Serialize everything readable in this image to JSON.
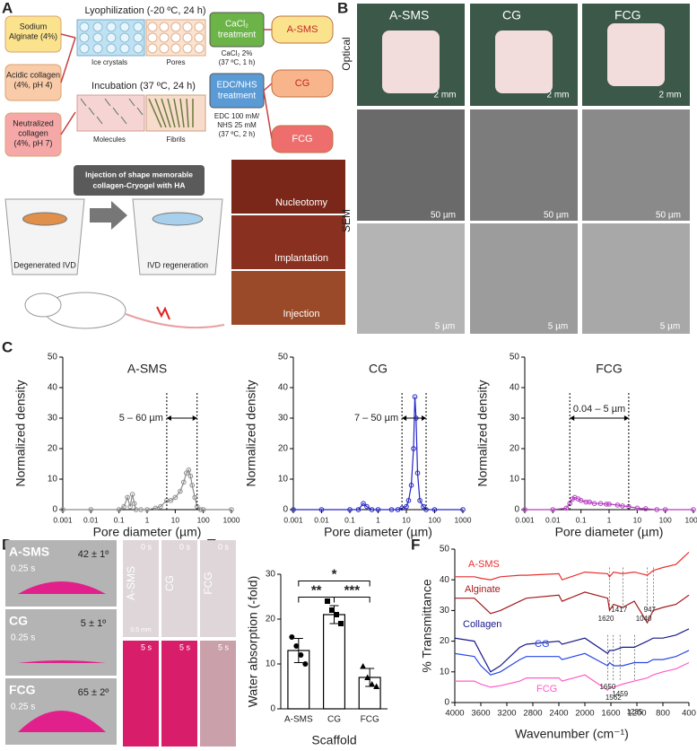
{
  "panel_labels": [
    "A",
    "B",
    "C",
    "D",
    "E",
    "F"
  ],
  "panel_a": {
    "inputs": [
      [
        "Sodium",
        "Alginate (4%)"
      ],
      [
        "Acidic collagen",
        "(4%, pH 4)"
      ],
      [
        "Neutralized",
        "collagen",
        "(4%, pH 7)"
      ]
    ],
    "lyophilization": "Lyophilization (-20 ºC, 24 h)",
    "ice_crystals": "Ice crystals",
    "pores": "Pores",
    "incubation": "Incubation (37 ºC, 24 h)",
    "molecules": "Molecules",
    "fibrils": "Fibrils",
    "treatments": [
      [
        "CaCl₂",
        "treatment"
      ],
      [
        "EDC/NHS",
        "treatment"
      ]
    ],
    "conditions": [
      [
        "CaCl₂ 2%",
        "(37 ºC, 1 h)"
      ],
      [
        "EDC 100 mM/",
        "NHS 25 mM",
        "(37 ºC, 2 h)"
      ]
    ],
    "products": [
      "A-SMS",
      "CG",
      "FCG"
    ],
    "banner": [
      "Injection of shape memorable",
      "collagen-Cryogel with HA"
    ],
    "ivd": [
      "Degenerated IVD",
      "IVD regeneration"
    ],
    "surgery": [
      "Nucleotomy",
      "Implantation",
      "Injection"
    ]
  },
  "panel_b": {
    "columns": [
      "A-SMS",
      "CG",
      "FCG"
    ],
    "rows": [
      "Optical",
      "SEM"
    ],
    "optical_scale": [
      "2 mm",
      "2 mm",
      "2 mm"
    ],
    "sem_scale_low": [
      "50 µm",
      "50 µm",
      "50 µm"
    ],
    "sem_scale_high": [
      "5 µm",
      "5 µm",
      "5 µm"
    ]
  },
  "panel_d": {
    "samples": [
      "A-SMS",
      "CG",
      "FCG"
    ],
    "time": [
      "0.25 s",
      "0.25 s",
      "0.25 s"
    ],
    "angles": [
      "42 ± 1º",
      "5 ± 1º",
      "65 ± 2º"
    ],
    "strip_labels": [
      "A-SMS",
      "CG",
      "FCG"
    ],
    "strip_times": [
      "0 s",
      "5 s"
    ],
    "strip_scale": "0.5 mm"
  },
  "chart_data": [
    {
      "type": "line",
      "title": "A-SMS",
      "xlabel": "Pore diameter (µm)",
      "ylabel": "Normalized density",
      "log_x": true,
      "markers": true,
      "color": "#8c8c8c",
      "x": [
        0.001,
        0.01,
        0.1,
        0.15,
        0.2,
        0.25,
        0.3,
        0.35,
        0.4,
        0.6,
        1,
        2,
        3,
        5,
        7,
        10,
        15,
        20,
        25,
        30,
        35,
        40,
        50,
        60,
        80,
        100,
        1000
      ],
      "values": [
        0,
        0,
        0,
        1,
        4,
        1,
        5,
        2,
        0,
        0,
        0,
        0.5,
        1,
        3,
        3,
        4,
        6,
        9,
        12,
        13,
        11,
        8,
        4,
        1,
        0,
        0,
        0
      ],
      "annotation": "5 – 60 µm",
      "range": [
        5,
        60
      ],
      "xlim": [
        0.001,
        1000
      ],
      "xticks": [
        0.001,
        0.01,
        0.1,
        1,
        10,
        100,
        1000
      ],
      "ylim": [
        0,
        50
      ],
      "yticks": [
        0,
        10,
        20,
        30,
        40,
        50
      ]
    },
    {
      "type": "line",
      "title": "CG",
      "xlabel": "Pore diameter (µm)",
      "ylabel": "Normalized density",
      "log_x": true,
      "markers": true,
      "color": "#2424c8",
      "x": [
        0.001,
        0.01,
        0.1,
        0.2,
        0.3,
        0.4,
        0.6,
        1,
        3,
        5,
        7,
        10,
        12,
        15,
        18,
        20,
        22,
        25,
        30,
        40,
        50,
        100,
        1000
      ],
      "values": [
        0,
        0,
        0,
        0,
        2,
        1,
        0,
        0,
        0,
        0,
        0.5,
        1,
        3,
        8,
        20,
        37,
        30,
        12,
        3,
        1,
        0,
        0,
        0
      ],
      "annotation": "7 – 50 µm",
      "range": [
        7,
        50
      ],
      "xlim": [
        0.001,
        1000
      ],
      "xticks": [
        0.001,
        0.01,
        0.1,
        1,
        10,
        100,
        1000
      ],
      "ylim": [
        0,
        50
      ],
      "yticks": [
        0,
        10,
        20,
        30,
        40,
        50
      ]
    },
    {
      "type": "line",
      "title": "FCG",
      "xlabel": "Pore diameter (µm)",
      "ylabel": "Normalized density",
      "log_x": true,
      "markers": true,
      "color": "#b43cc0",
      "x": [
        0.001,
        0.01,
        0.03,
        0.04,
        0.05,
        0.06,
        0.08,
        0.1,
        0.15,
        0.2,
        0.3,
        0.5,
        0.8,
        1,
        2,
        3,
        5,
        10,
        20,
        50,
        100,
        1000
      ],
      "values": [
        0,
        0,
        0.5,
        2,
        3.5,
        4,
        3.5,
        3,
        2.5,
        2.5,
        2,
        2,
        1.8,
        1.8,
        1.5,
        1.2,
        1,
        0.5,
        0.3,
        0,
        0,
        0
      ],
      "annotation": "0.04 – 5 µm",
      "range": [
        0.04,
        5
      ],
      "xlim": [
        0.001,
        1000
      ],
      "xticks": [
        0.001,
        0.01,
        0.1,
        1,
        10,
        100,
        1000
      ],
      "ylim": [
        0,
        50
      ],
      "yticks": [
        0,
        10,
        20,
        30,
        40,
        50
      ]
    },
    {
      "type": "bar",
      "xlabel": "Scaffold",
      "ylabel": "Water absorption (-fold)",
      "categories": [
        "A-SMS",
        "CG",
        "FCG"
      ],
      "values": [
        13,
        21,
        7
      ],
      "errors": [
        2.7,
        2,
        2
      ],
      "points": [
        [
          16,
          14,
          12,
          10
        ],
        [
          24,
          22,
          21,
          19
        ],
        [
          9.5,
          7,
          5.5,
          5
        ]
      ],
      "significance": [
        "**",
        "***",
        "*"
      ],
      "ylim": [
        0,
        30
      ],
      "yticks": [
        0,
        10,
        20,
        30
      ]
    },
    {
      "type": "line",
      "xlabel": "Wavenumber (cm⁻¹)",
      "ylabel": "% Transmittance",
      "x": [
        4000,
        3700,
        3600,
        3450,
        3300,
        3000,
        2900,
        2400,
        2350,
        2000,
        1650,
        1620,
        1560,
        1420,
        1240,
        1040,
        950,
        800,
        600,
        400
      ],
      "series": [
        {
          "name": "A-SMS",
          "color": "#e83030",
          "values": [
            41,
            41,
            40.5,
            40,
            41,
            41.5,
            41.5,
            42,
            40,
            42.5,
            42,
            41,
            42.5,
            42,
            42.5,
            41.5,
            43,
            44,
            45,
            49
          ]
        },
        {
          "name": "Alginate",
          "color": "#a41a1a",
          "values": [
            34,
            34,
            32,
            29,
            30,
            33,
            34,
            35,
            33,
            36,
            34,
            30,
            32,
            31,
            33,
            26,
            30,
            31,
            32,
            35
          ]
        },
        {
          "name": "Collagen",
          "color": "#1a1a8c",
          "values": [
            21,
            20,
            16,
            10,
            12,
            18,
            19,
            20,
            19,
            21,
            16,
            17,
            17,
            18,
            18,
            20,
            21,
            21,
            22,
            24
          ]
        },
        {
          "name": "CG",
          "color": "#2848e8",
          "values": [
            16,
            15,
            12,
            9,
            10,
            14,
            15,
            15,
            14,
            16,
            12,
            13,
            12,
            12,
            13,
            13,
            14,
            14,
            15,
            17
          ]
        },
        {
          "name": "FCG",
          "color": "#ff5cc8",
          "values": [
            7,
            7,
            6,
            5,
            5.5,
            7,
            8,
            8,
            7,
            9,
            4,
            5,
            5,
            6,
            7,
            8,
            9,
            10,
            11,
            13
          ]
        }
      ],
      "peaks_top": [
        1620,
        1417,
        1040,
        947
      ],
      "peaks_bottom": [
        1650,
        1562,
        1459,
        1235
      ],
      "xlim": [
        4000,
        400
      ],
      "xticks": [
        4000,
        3600,
        3200,
        2800,
        2400,
        2000,
        1600,
        1200,
        800,
        400
      ],
      "ylim": [
        0,
        50
      ],
      "yticks": [
        0,
        10,
        20,
        30,
        40,
        50
      ]
    }
  ]
}
